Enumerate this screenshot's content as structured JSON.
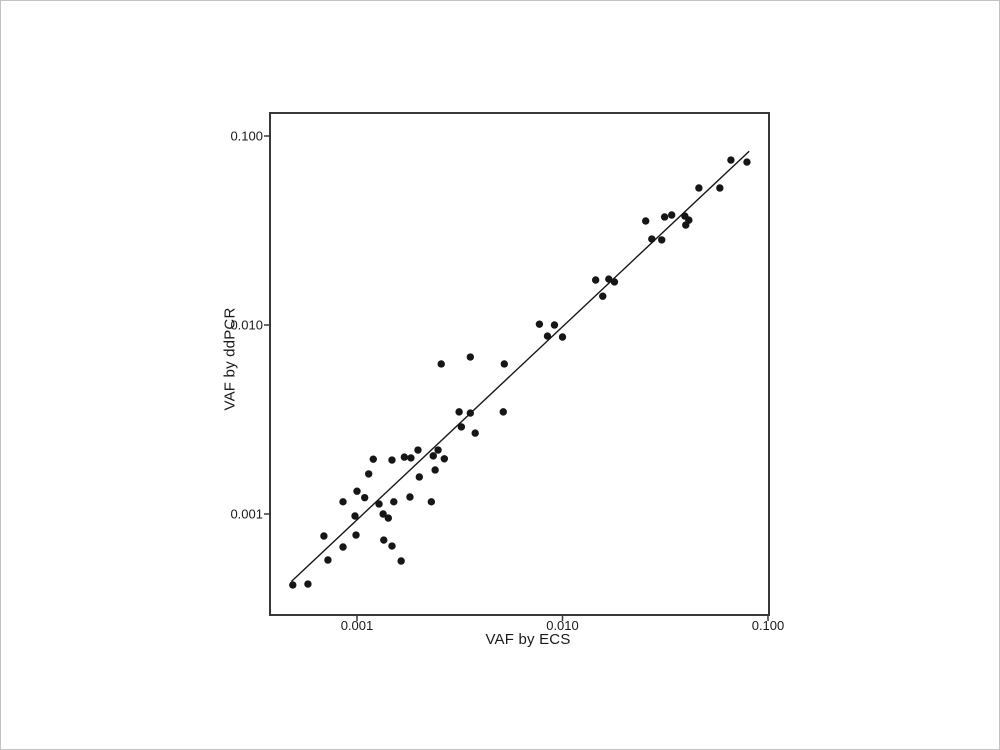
{
  "figure": {
    "background": "#ffffff",
    "frame_color": "#c2c2c2",
    "panel_border_color": "#383838",
    "text_color": "#1a1a1a"
  },
  "chart_data": {
    "type": "scatter",
    "title": "",
    "xlabel": "VAF by ECS",
    "ylabel": "VAF by ddPCR",
    "xscale": "log",
    "yscale": "log",
    "xlim": [
      0.00038,
      0.1
    ],
    "ylim": [
      0.00029,
      0.13
    ],
    "grid": false,
    "legend_position": "none",
    "point_color": "#161616",
    "line_color": "#161616",
    "xticks": {
      "values": [
        0.001,
        0.01,
        0.1
      ],
      "labels": [
        "0.001",
        "0.010",
        "0.100"
      ]
    },
    "yticks": {
      "values": [
        0.001,
        0.01,
        0.1
      ],
      "labels": [
        "0.001",
        "0.010",
        "0.100"
      ]
    },
    "fit_line": {
      "x1": 0.00048,
      "y1": 0.00044,
      "x2": 0.081,
      "y2": 0.083
    },
    "points": [
      [
        0.000487,
        0.000421
      ],
      [
        0.000577,
        0.000426
      ],
      [
        0.00069,
        0.000765
      ],
      [
        0.000722,
        0.000571
      ],
      [
        0.000855,
        0.000669
      ],
      [
        0.000989,
        0.000774
      ],
      [
        0.00135,
        0.000728
      ],
      [
        0.00148,
        0.000677
      ],
      [
        0.00164,
        0.000564
      ],
      [
        0.0012,
        0.00195
      ],
      [
        0.00148,
        0.00193
      ],
      [
        0.0017,
        0.002
      ],
      [
        0.00183,
        0.00198
      ],
      [
        0.00198,
        0.00218
      ],
      [
        0.00235,
        0.00203
      ],
      [
        0.00248,
        0.00218
      ],
      [
        0.00266,
        0.00196
      ],
      [
        0.0024,
        0.00171
      ],
      [
        0.00114,
        0.00163
      ],
      [
        0.00201,
        0.00157
      ],
      [
        0.001,
        0.00132
      ],
      [
        0.00109,
        0.00122
      ],
      [
        0.000855,
        0.00116
      ],
      [
        0.00128,
        0.00113
      ],
      [
        0.00151,
        0.00116
      ],
      [
        0.00181,
        0.00123
      ],
      [
        0.0023,
        0.00116
      ],
      [
        0.000978,
        0.000976
      ],
      [
        0.00134,
        0.001
      ],
      [
        0.00142,
        0.000952
      ],
      [
        0.00322,
        0.00289
      ],
      [
        0.00376,
        0.00268
      ],
      [
        0.00257,
        0.00622
      ],
      [
        0.00356,
        0.00677
      ],
      [
        0.00521,
        0.00622
      ],
      [
        0.00314,
        0.00347
      ],
      [
        0.00356,
        0.00342
      ],
      [
        0.00515,
        0.00347
      ],
      [
        0.00772,
        0.0101
      ],
      [
        0.00914,
        0.01
      ],
      [
        0.00845,
        0.00874
      ],
      [
        0.01,
        0.00864
      ],
      [
        0.0145,
        0.0173
      ],
      [
        0.0168,
        0.0175
      ],
      [
        0.0179,
        0.0169
      ],
      [
        0.0157,
        0.0142
      ],
      [
        0.0254,
        0.0355
      ],
      [
        0.0314,
        0.0373
      ],
      [
        0.034,
        0.0382
      ],
      [
        0.0394,
        0.0377
      ],
      [
        0.0412,
        0.0359
      ],
      [
        0.0398,
        0.0338
      ],
      [
        0.0272,
        0.0285
      ],
      [
        0.0304,
        0.0282
      ],
      [
        0.0461,
        0.0531
      ],
      [
        0.0583,
        0.0531
      ],
      [
        0.066,
        0.0746
      ],
      [
        0.079,
        0.0728
      ]
    ]
  }
}
